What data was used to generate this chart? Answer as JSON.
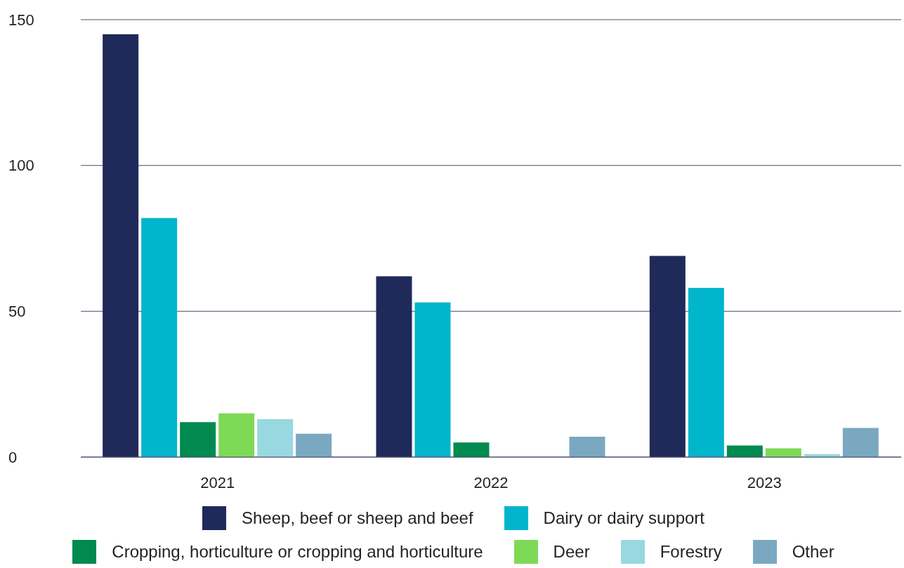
{
  "chart_data": {
    "type": "bar",
    "categories": [
      "2021",
      "2022",
      "2023"
    ],
    "series": [
      {
        "name": "Sheep, beef or sheep and beef",
        "color": "#1f2a5a",
        "values": [
          145,
          62,
          69
        ]
      },
      {
        "name": "Dairy or dairy support",
        "color": "#00b5cc",
        "values": [
          82,
          53,
          58
        ]
      },
      {
        "name": "Cropping, horticulture or cropping and horticulture",
        "color": "#008a4f",
        "values": [
          12,
          5,
          4
        ]
      },
      {
        "name": "Deer",
        "color": "#7ed957",
        "values": [
          15,
          0,
          3
        ]
      },
      {
        "name": "Forestry",
        "color": "#98d8e0",
        "values": [
          13,
          0,
          1
        ]
      },
      {
        "name": "Other",
        "color": "#7aa8c0",
        "values": [
          8,
          7,
          10
        ]
      }
    ],
    "ylim": [
      0,
      150
    ],
    "yticks": [
      0,
      50,
      100,
      150
    ],
    "grid": "y",
    "legend": "bottom"
  }
}
